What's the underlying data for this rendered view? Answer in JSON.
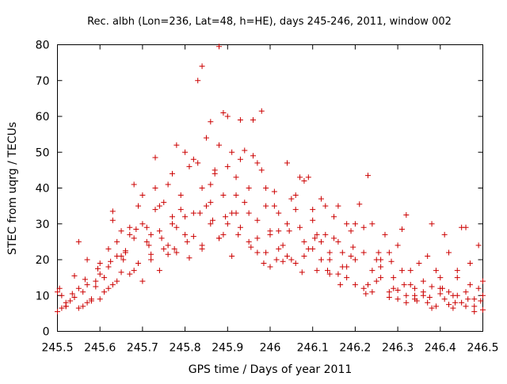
{
  "chart_data": {
    "type": "scatter",
    "title": "Rec. albh (Lon=236, Lat=48, h=HE), days 245-246, 2011, window 002",
    "xlabel": "GPS time / Days of year 2011",
    "ylabel": "STEC from uqrg / TECUs",
    "xlim": [
      245.5,
      246.5
    ],
    "ylim": [
      0,
      80
    ],
    "xticks": [
      245.5,
      245.6,
      245.7,
      245.8,
      245.9,
      246.0,
      246.1,
      246.2,
      246.3,
      246.4,
      246.5
    ],
    "xtick_labels": [
      "245.5",
      "245.6",
      "245.7",
      "245.8",
      "245.9",
      "246",
      "246.1",
      "246.2",
      "246.3",
      "246.4",
      "246.5"
    ],
    "yticks": [
      0,
      10,
      20,
      30,
      40,
      50,
      60,
      70,
      80
    ],
    "ytick_labels": [
      "0",
      "10",
      "20",
      "30",
      "40",
      "50",
      "60",
      "70",
      "80"
    ],
    "grid": false,
    "marker": "+",
    "series_color": "#cc0000",
    "points": [
      [
        245.5,
        5.5
      ],
      [
        245.51,
        6.5
      ],
      [
        245.52,
        7.0
      ],
      [
        245.52,
        8.0
      ],
      [
        245.54,
        15.5
      ],
      [
        245.55,
        25.0
      ],
      [
        245.55,
        12.0
      ],
      [
        245.56,
        11.0
      ],
      [
        245.57,
        20.0
      ],
      [
        245.57,
        8.0
      ],
      [
        245.58,
        8.5
      ],
      [
        245.59,
        14.0
      ],
      [
        245.6,
        19.0
      ],
      [
        245.6,
        9.0
      ],
      [
        245.61,
        11.0
      ],
      [
        245.62,
        23.0
      ],
      [
        245.62,
        12.0
      ],
      [
        245.63,
        33.5
      ],
      [
        245.63,
        31.0
      ],
      [
        245.64,
        25.0
      ],
      [
        245.64,
        21.0
      ],
      [
        245.65,
        28.0
      ],
      [
        245.66,
        22.0
      ],
      [
        245.67,
        16.0
      ],
      [
        245.67,
        27.0
      ],
      [
        245.68,
        41.0
      ],
      [
        245.68,
        26.0
      ],
      [
        245.69,
        19.0
      ],
      [
        245.7,
        30.0
      ],
      [
        245.7,
        14.0
      ],
      [
        245.71,
        25.0
      ],
      [
        245.72,
        27.0
      ],
      [
        245.72,
        20.0
      ],
      [
        245.73,
        48.5
      ],
      [
        245.73,
        34.0
      ],
      [
        245.74,
        35.0
      ],
      [
        245.74,
        17.0
      ],
      [
        245.75,
        36.0
      ],
      [
        245.76,
        41.0
      ],
      [
        245.76,
        24.0
      ],
      [
        245.77,
        44.0
      ],
      [
        245.77,
        30.0
      ],
      [
        245.78,
        52.0
      ],
      [
        245.78,
        22.0
      ],
      [
        245.79,
        38.0
      ],
      [
        245.8,
        50.0
      ],
      [
        245.8,
        27.0
      ],
      [
        245.81,
        20.5
      ],
      [
        245.82,
        48.0
      ],
      [
        245.82,
        33.0
      ],
      [
        245.83,
        47.0
      ],
      [
        245.84,
        40.0
      ],
      [
        245.84,
        24.0
      ],
      [
        245.85,
        35.0
      ],
      [
        245.86,
        41.0
      ],
      [
        245.86,
        30.0
      ],
      [
        245.87,
        44.0
      ],
      [
        245.88,
        52.0
      ],
      [
        245.88,
        26.0
      ],
      [
        245.89,
        38.0
      ],
      [
        245.9,
        46.0
      ],
      [
        245.9,
        30.0
      ],
      [
        245.91,
        21.0
      ],
      [
        245.92,
        43.0
      ],
      [
        245.92,
        33.0
      ],
      [
        245.93,
        59.0
      ],
      [
        245.93,
        48.0
      ],
      [
        245.94,
        36.0
      ],
      [
        245.95,
        40.0
      ],
      [
        245.95,
        25.0
      ],
      [
        245.96,
        49.0
      ],
      [
        245.97,
        31.0
      ],
      [
        245.97,
        22.0
      ],
      [
        245.98,
        45.0
      ],
      [
        245.99,
        35.0
      ],
      [
        246.0,
        27.0
      ],
      [
        246.0,
        18.0
      ],
      [
        246.01,
        39.0
      ],
      [
        246.02,
        33.0
      ],
      [
        246.03,
        24.0
      ],
      [
        246.04,
        47.0
      ],
      [
        246.04,
        30.0
      ],
      [
        246.05,
        20.0
      ],
      [
        246.06,
        38.0
      ],
      [
        246.07,
        29.0
      ],
      [
        246.08,
        25.0
      ],
      [
        246.09,
        43.0
      ],
      [
        246.1,
        31.0
      ],
      [
        246.11,
        17.0
      ],
      [
        246.12,
        37.0
      ],
      [
        246.13,
        27.0
      ],
      [
        246.14,
        22.0
      ],
      [
        246.15,
        32.0
      ],
      [
        246.16,
        25.0
      ],
      [
        246.17,
        18.0
      ],
      [
        246.18,
        30.0
      ],
      [
        246.19,
        28.0
      ],
      [
        246.2,
        20.0
      ],
      [
        246.21,
        35.5
      ],
      [
        246.22,
        22.0
      ],
      [
        246.23,
        13.0
      ],
      [
        246.24,
        30.0
      ],
      [
        246.25,
        20.0
      ],
      [
        246.26,
        15.0
      ],
      [
        246.27,
        27.0
      ],
      [
        246.28,
        22.0
      ],
      [
        246.29,
        12.0
      ],
      [
        246.3,
        24.0
      ],
      [
        246.31,
        17.0
      ],
      [
        246.32,
        32.5
      ],
      [
        246.33,
        13.0
      ],
      [
        246.34,
        10.0
      ],
      [
        246.35,
        19.0
      ],
      [
        246.36,
        14.0
      ],
      [
        246.37,
        8.0
      ],
      [
        246.38,
        30.0
      ],
      [
        246.39,
        17.0
      ],
      [
        246.4,
        12.0
      ],
      [
        246.41,
        9.0
      ],
      [
        246.42,
        22.0
      ],
      [
        246.43,
        10.0
      ],
      [
        246.44,
        15.0
      ],
      [
        246.45,
        8.0
      ],
      [
        246.46,
        29.0
      ],
      [
        246.47,
        13.0
      ],
      [
        246.48,
        7.0
      ],
      [
        246.49,
        24.0
      ],
      [
        246.5,
        14.0
      ],
      [
        245.5,
        11.0
      ],
      [
        245.51,
        10.0
      ],
      [
        245.53,
        8.5
      ],
      [
        245.56,
        7.0
      ],
      [
        245.58,
        9.0
      ],
      [
        245.61,
        15.0
      ],
      [
        245.63,
        13.0
      ],
      [
        245.65,
        16.5
      ],
      [
        245.66,
        22.5
      ],
      [
        245.69,
        35.0
      ],
      [
        245.71,
        29.0
      ],
      [
        245.73,
        40.0
      ],
      [
        245.75,
        23.0
      ],
      [
        245.77,
        32.0
      ],
      [
        245.79,
        34.0
      ],
      [
        245.81,
        46.0
      ],
      [
        245.83,
        70.0
      ],
      [
        245.84,
        74.0
      ],
      [
        245.85,
        54.0
      ],
      [
        245.86,
        58.5
      ],
      [
        245.87,
        45.0
      ],
      [
        245.88,
        79.5
      ],
      [
        245.89,
        61.0
      ],
      [
        245.9,
        60.0
      ],
      [
        245.91,
        50.0
      ],
      [
        245.92,
        38.0
      ],
      [
        245.94,
        50.5
      ],
      [
        245.96,
        59.0
      ],
      [
        245.97,
        47.0
      ],
      [
        245.98,
        61.5
      ],
      [
        245.99,
        40.0
      ],
      [
        246.01,
        35.0
      ],
      [
        246.02,
        28.0
      ],
      [
        246.03,
        19.5
      ],
      [
        246.05,
        37.0
      ],
      [
        246.06,
        34.0
      ],
      [
        246.07,
        43.0
      ],
      [
        246.08,
        42.0
      ],
      [
        246.09,
        23.0
      ],
      [
        246.1,
        34.0
      ],
      [
        246.11,
        27.0
      ],
      [
        246.12,
        20.0
      ],
      [
        246.13,
        35.0
      ],
      [
        246.14,
        16.0
      ],
      [
        246.15,
        26.0
      ],
      [
        246.16,
        35.0
      ],
      [
        246.17,
        22.0
      ],
      [
        246.18,
        15.0
      ],
      [
        246.19,
        21.0
      ],
      [
        246.2,
        30.0
      ],
      [
        246.22,
        29.0
      ],
      [
        246.23,
        43.5
      ],
      [
        246.24,
        17.0
      ],
      [
        246.25,
        14.0
      ],
      [
        246.26,
        20.0
      ],
      [
        246.28,
        11.0
      ],
      [
        246.29,
        15.0
      ],
      [
        246.3,
        11.5
      ],
      [
        246.31,
        28.5
      ],
      [
        246.32,
        10.0
      ],
      [
        246.33,
        17.0
      ],
      [
        246.34,
        9.0
      ],
      [
        246.36,
        11.0
      ],
      [
        246.37,
        21.0
      ],
      [
        246.38,
        12.5
      ],
      [
        246.39,
        7.0
      ],
      [
        246.4,
        15.0
      ],
      [
        246.41,
        27.0
      ],
      [
        246.42,
        11.0
      ],
      [
        246.43,
        6.5
      ],
      [
        246.44,
        17.0
      ],
      [
        246.45,
        29.0
      ],
      [
        246.46,
        11.0
      ],
      [
        246.47,
        19.0
      ],
      [
        246.48,
        5.5
      ],
      [
        246.49,
        12.0
      ],
      [
        246.5,
        10.0
      ],
      [
        245.52,
        7.0
      ],
      [
        245.54,
        9.5
      ],
      [
        245.55,
        6.5
      ],
      [
        245.57,
        13.0
      ],
      [
        245.59,
        12.5
      ],
      [
        245.6,
        16.0
      ],
      [
        245.62,
        18.0
      ],
      [
        245.64,
        14.0
      ],
      [
        245.65,
        21.0
      ],
      [
        245.67,
        29.0
      ],
      [
        245.68,
        17.0
      ],
      [
        245.7,
        38.0
      ],
      [
        245.72,
        21.5
      ],
      [
        245.74,
        28.0
      ],
      [
        245.76,
        21.5
      ],
      [
        245.78,
        29.0
      ],
      [
        245.8,
        32.0
      ],
      [
        245.82,
        26.5
      ],
      [
        245.84,
        23.0
      ],
      [
        245.86,
        36.0
      ],
      [
        245.88,
        26.0
      ],
      [
        245.89,
        27.0
      ],
      [
        245.91,
        33.0
      ],
      [
        245.93,
        29.0
      ],
      [
        245.95,
        33.0
      ],
      [
        245.97,
        26.0
      ],
      [
        245.99,
        22.0
      ],
      [
        246.0,
        28.0
      ],
      [
        246.02,
        23.0
      ],
      [
        246.04,
        21.0
      ],
      [
        246.06,
        19.0
      ],
      [
        246.08,
        21.0
      ],
      [
        246.1,
        23.0
      ],
      [
        246.12,
        25.0
      ],
      [
        246.14,
        20.0
      ],
      [
        246.16,
        16.0
      ],
      [
        246.18,
        18.0
      ],
      [
        246.2,
        13.0
      ],
      [
        246.22,
        12.0
      ],
      [
        246.24,
        11.0
      ],
      [
        246.26,
        18.0
      ],
      [
        246.28,
        9.5
      ],
      [
        246.3,
        9.0
      ],
      [
        246.32,
        8.0
      ],
      [
        246.34,
        12.0
      ],
      [
        246.36,
        10.0
      ],
      [
        246.38,
        6.5
      ],
      [
        246.4,
        10.5
      ],
      [
        246.42,
        7.5
      ],
      [
        246.44,
        10.0
      ],
      [
        246.46,
        7.0
      ],
      [
        246.48,
        9.0
      ],
      [
        246.5,
        6.0
      ],
      [
        245.505,
        12.0
      ],
      [
        245.535,
        10.5
      ],
      [
        245.565,
        14.5
      ],
      [
        245.595,
        17.5
      ],
      [
        245.625,
        19.5
      ],
      [
        245.655,
        20.0
      ],
      [
        245.685,
        28.5
      ],
      [
        245.715,
        24.0
      ],
      [
        245.745,
        26.0
      ],
      [
        245.775,
        23.0
      ],
      [
        245.805,
        25.0
      ],
      [
        245.835,
        33.0
      ],
      [
        245.865,
        31.0
      ],
      [
        245.895,
        32.0
      ],
      [
        245.925,
        27.0
      ],
      [
        245.955,
        23.5
      ],
      [
        245.985,
        19.0
      ],
      [
        246.015,
        20.0
      ],
      [
        246.045,
        28.0
      ],
      [
        246.075,
        16.5
      ],
      [
        246.105,
        26.0
      ],
      [
        246.135,
        17.0
      ],
      [
        246.165,
        13.0
      ],
      [
        246.195,
        23.5
      ],
      [
        246.225,
        10.5
      ],
      [
        246.255,
        22.0
      ],
      [
        246.285,
        19.5
      ],
      [
        246.315,
        13.0
      ],
      [
        246.345,
        8.5
      ],
      [
        246.375,
        9.5
      ],
      [
        246.405,
        12.0
      ],
      [
        246.435,
        8.0
      ],
      [
        246.465,
        9.0
      ],
      [
        246.495,
        8.5
      ]
    ]
  }
}
